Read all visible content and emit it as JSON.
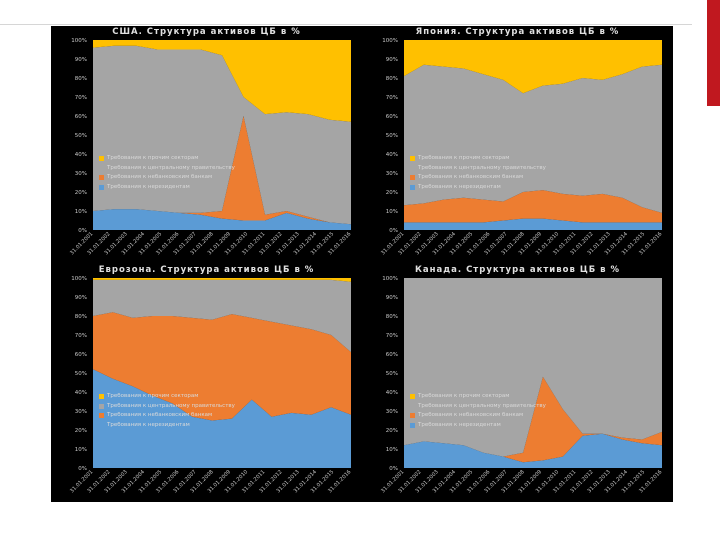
{
  "colors": {
    "receivables_individuals": "#ffc000",
    "central_government": "#a5a5a5",
    "nonbank_banks": "#ed7d31",
    "nonresidents": "#5b9bd5",
    "background": "#000000"
  },
  "chart_data": [
    {
      "id": "usa",
      "type": "area",
      "stacked": true,
      "title": "США. Структура активов ЦБ в %",
      "ylim": [
        0,
        100
      ],
      "yticks": [
        "0%",
        "10%",
        "20%",
        "30%",
        "40%",
        "50%",
        "60%",
        "70%",
        "80%",
        "90%",
        "100%"
      ],
      "x": [
        "31.01.2002",
        "31.01.2003",
        "31.01.2004",
        "31.01.2005",
        "31.01.2006",
        "31.01.2007",
        "31.01.2008",
        "31.01.2009",
        "31.01.2010",
        "31.01.2011",
        "31.01.2012",
        "31.01.2013",
        "31.01.2014"
      ],
      "xticks": [
        "31.01.2001",
        "31.01.2002",
        "31.01.2003",
        "31.01.2004",
        "31.01.2005",
        "31.01.2006",
        "31.01.2007",
        "31.01.2008",
        "31.01.2009",
        "31.01.2010",
        "31.01.2011",
        "31.01.2012",
        "31.01.2013",
        "31.01.2014",
        "31.01.2015",
        "31.01.2016"
      ],
      "legend": [
        "Требования к прочим секторам",
        "Требования к центральному правительству",
        "Требования к небанковским банкам",
        "Требования к нерезидентам"
      ],
      "series": [
        {
          "name": "Требования к нерезидентам",
          "color": "#5b9bd5",
          "values": [
            10,
            11,
            11,
            10,
            9,
            8,
            6,
            5,
            5,
            9,
            6,
            4,
            3
          ]
        },
        {
          "name": "Требования к небанковским банкам",
          "color": "#ed7d31",
          "values": [
            0,
            0,
            0,
            0,
            0,
            1,
            4,
            55,
            3,
            1,
            1,
            0,
            0
          ]
        },
        {
          "name": "Требования к центральному правительству",
          "color": "#a5a5a5",
          "values": [
            86,
            86,
            86,
            85,
            86,
            86,
            82,
            10,
            53,
            52,
            54,
            54,
            54
          ]
        },
        {
          "name": "Требования к прочим секторам",
          "color": "#ffc000",
          "values": [
            4,
            3,
            3,
            5,
            5,
            5,
            8,
            30,
            39,
            38,
            39,
            42,
            43
          ]
        }
      ]
    },
    {
      "id": "japan",
      "type": "area",
      "stacked": true,
      "title": "Япония. Структура активов ЦБ в %",
      "ylim": [
        0,
        100
      ],
      "yticks": [
        "0%",
        "10%",
        "20%",
        "30%",
        "40%",
        "50%",
        "60%",
        "70%",
        "80%",
        "90%",
        "100%"
      ],
      "x": [
        "2001",
        "2002",
        "2003",
        "2004",
        "2005",
        "2006",
        "2007",
        "2008",
        "2009",
        "2010",
        "2011",
        "2012",
        "2013",
        "2014"
      ],
      "xticks": [
        "31.01.2001",
        "31.01.2002",
        "31.01.2003",
        "31.01.2004",
        "31.01.2005",
        "31.01.2006",
        "31.01.2007",
        "31.01.2008",
        "31.01.2009",
        "31.01.2010",
        "31.01.2011",
        "31.01.2012",
        "31.01.2013",
        "31.01.2014",
        "31.01.2015",
        "31.01.2016"
      ],
      "legend": [
        "Требования к прочим секторам",
        "Требования к центральному правительству",
        "Требования к небанковским банкам",
        "Требования к нерезидентам"
      ],
      "series": [
        {
          "name": "Требования к нерезидентам",
          "color": "#5b9bd5",
          "values": [
            4,
            4,
            4,
            4,
            4,
            5,
            6,
            6,
            5,
            4,
            4,
            4,
            4,
            4
          ]
        },
        {
          "name": "Требования к небанковским банкам",
          "color": "#ed7d31",
          "values": [
            9,
            10,
            12,
            13,
            12,
            10,
            14,
            15,
            14,
            14,
            15,
            13,
            8,
            5
          ]
        },
        {
          "name": "Требования к центральному правительству",
          "color": "#a5a5a5",
          "values": [
            68,
            73,
            70,
            68,
            66,
            64,
            52,
            55,
            58,
            62,
            60,
            65,
            74,
            78
          ]
        },
        {
          "name": "Требования к прочим секторам",
          "color": "#ffc000",
          "values": [
            19,
            13,
            14,
            15,
            18,
            21,
            28,
            24,
            23,
            20,
            21,
            18,
            14,
            13
          ]
        }
      ]
    },
    {
      "id": "eurozone",
      "type": "area",
      "stacked": true,
      "title": "Еврозона. Структура активов ЦБ в %",
      "ylim": [
        0,
        100
      ],
      "yticks": [
        "0%",
        "10%",
        "20%",
        "30%",
        "40%",
        "50%",
        "60%",
        "70%",
        "80%",
        "90%",
        "100%"
      ],
      "x": [
        "2001",
        "2002",
        "2003",
        "2004",
        "2005",
        "2006",
        "2007",
        "2008",
        "2009",
        "2010",
        "2011",
        "2012",
        "2013",
        "2014"
      ],
      "xticks": [
        "31.01.2001",
        "31.01.2002",
        "31.01.2003",
        "31.01.2004",
        "31.01.2005",
        "31.01.2006",
        "31.01.2007",
        "31.01.2008",
        "31.01.2009",
        "31.01.2010",
        "31.01.2011",
        "31.01.2012",
        "31.01.2013",
        "31.01.2014",
        "31.01.2015",
        "31.01.2016"
      ],
      "legend": [
        "Требования к прочим секторам",
        "Требования к центральному правительству",
        "Требования к небанковским банкам",
        "Требования к нерезидентам"
      ],
      "series": [
        {
          "name": "Требования к нерезидентам",
          "color": "#5b9bd5",
          "values": [
            52,
            47,
            43,
            38,
            34,
            27,
            25,
            26,
            36,
            27,
            29,
            28,
            32,
            28
          ]
        },
        {
          "name": "Требования к небанковским банкам",
          "color": "#ed7d31",
          "values": [
            28,
            35,
            36,
            42,
            46,
            52,
            53,
            55,
            43,
            50,
            46,
            45,
            38,
            33
          ]
        },
        {
          "name": "Требования к центральному правительству",
          "color": "#a5a5a5",
          "values": [
            19,
            17,
            20,
            19,
            19,
            20,
            21,
            18,
            20,
            22,
            24,
            26,
            29,
            37
          ]
        },
        {
          "name": "Требования к прочим секторам",
          "color": "#ffc000",
          "values": [
            1,
            1,
            1,
            1,
            1,
            1,
            1,
            1,
            1,
            1,
            1,
            1,
            1,
            2
          ]
        }
      ]
    },
    {
      "id": "canada",
      "type": "area",
      "stacked": true,
      "title": "Канада. Структура активов ЦБ в %",
      "ylim": [
        0,
        100
      ],
      "yticks": [
        "0%",
        "10%",
        "20%",
        "30%",
        "40%",
        "50%",
        "60%",
        "70%",
        "80%",
        "90%",
        "100%"
      ],
      "x": [
        "2001",
        "2002",
        "2003",
        "2004",
        "2005",
        "2006",
        "2007",
        "2008",
        "2009",
        "2010",
        "2011",
        "2012",
        "2013",
        "2014"
      ],
      "xticks": [
        "31.01.2001",
        "31.01.2002",
        "31.01.2003",
        "31.01.2004",
        "31.01.2005",
        "31.01.2006",
        "31.01.2007",
        "31.01.2008",
        "31.01.2009",
        "31.01.2010",
        "31.01.2011",
        "31.01.2012",
        "31.01.2013",
        "31.01.2014",
        "31.01.2015",
        "31.01.2016"
      ],
      "legend": [
        "Требования к прочим секторам",
        "Требования к центральному правительству",
        "Требования к небанковским банкам",
        "Требования к нерезидентам"
      ],
      "series": [
        {
          "name": "Требования к нерезидентам",
          "color": "#5b9bd5",
          "values": [
            12,
            14,
            13,
            12,
            8,
            6,
            3,
            4,
            6,
            17,
            18,
            15,
            13,
            12
          ]
        },
        {
          "name": "Требования к небанковским банкам",
          "color": "#ed7d31",
          "values": [
            0,
            0,
            0,
            0,
            0,
            0,
            5,
            44,
            25,
            1,
            0,
            1,
            2,
            7
          ]
        },
        {
          "name": "Требования к центральному правительству",
          "color": "#a5a5a5",
          "values": [
            88,
            86,
            87,
            88,
            92,
            94,
            92,
            52,
            69,
            82,
            82,
            84,
            85,
            81
          ]
        },
        {
          "name": "Требования к прочим секторам",
          "color": "#ffc000",
          "values": [
            0,
            0,
            0,
            0,
            0,
            0,
            0,
            0,
            0,
            0,
            0,
            0,
            0,
            0
          ]
        }
      ]
    }
  ]
}
